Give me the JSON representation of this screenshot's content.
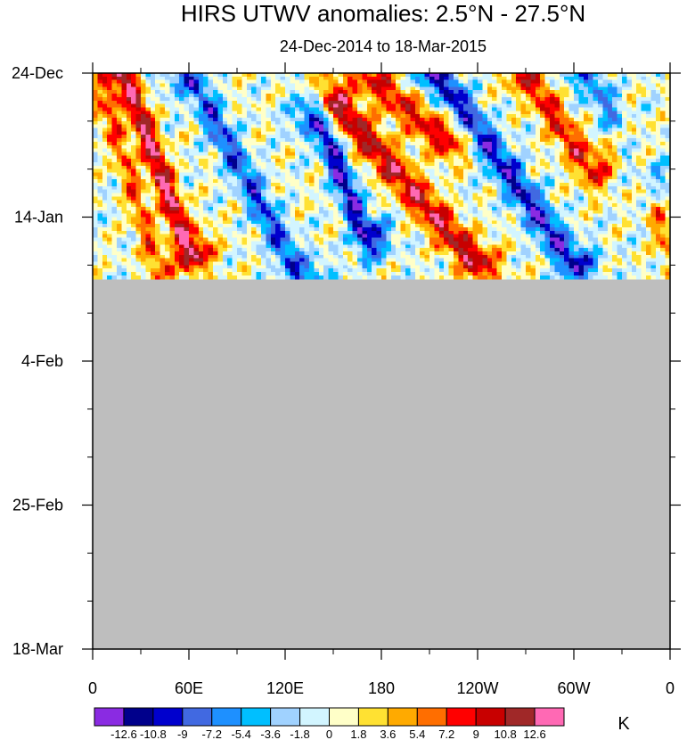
{
  "chart_data": {
    "type": "heatmap",
    "title": "HIRS UTWV anomalies: 2.5°N - 27.5°N",
    "subtitle": "24-Dec-2014 to 18-Mar-2015",
    "x_ticks": [
      "0",
      "60E",
      "120E",
      "180",
      "120W",
      "60W",
      "0"
    ],
    "x_tick_values": [
      0,
      60,
      120,
      180,
      240,
      300,
      360
    ],
    "x_range": [
      0,
      360
    ],
    "y_ticks": [
      "24-Dec",
      "14-Jan",
      "4-Feb",
      "25-Feb",
      "18-Mar"
    ],
    "y_tick_days": [
      0,
      21,
      42,
      63,
      84
    ],
    "y_range_days": [
      0,
      84
    ],
    "data_end_day": 30,
    "missing_color": "#bebebe",
    "colorbar": {
      "units": "K",
      "levels": [
        "-12.6",
        "-10.8",
        "-9",
        "-7.2",
        "-5.4",
        "-3.6",
        "-1.8",
        "0",
        "1.8",
        "3.6",
        "5.4",
        "7.2",
        "9",
        "10.8",
        "12.6"
      ],
      "colors": [
        "#8a2be2",
        "#00008b",
        "#0000cd",
        "#4169e1",
        "#1e90ff",
        "#00bfff",
        "#a0d2ff",
        "#d2f5ff",
        "#ffffc8",
        "#ffe132",
        "#ffaa00",
        "#ff6e00",
        "#ff0000",
        "#c80000",
        "#a02828",
        "#ff69b4"
      ]
    },
    "anomaly_features": [
      {
        "name": "warm band A",
        "start_lon": 20,
        "start_day": 0,
        "end_lon": 60,
        "end_day": 26,
        "peak": 13
      },
      {
        "name": "warm band B",
        "start_lon": 10,
        "start_day": 5,
        "end_lon": 40,
        "end_day": 28,
        "peak": 7
      },
      {
        "name": "cool band A",
        "start_lon": 60,
        "start_day": 0,
        "end_lon": 130,
        "end_day": 30,
        "peak": -9
      },
      {
        "name": "cool band B",
        "start_lon": 140,
        "start_day": 6,
        "end_lon": 170,
        "end_day": 24,
        "peak": -12
      },
      {
        "name": "warm band C",
        "start_lon": 150,
        "start_day": 4,
        "end_lon": 240,
        "end_day": 28,
        "peak": 11
      },
      {
        "name": "warm band D",
        "start_lon": 170,
        "start_day": 0,
        "end_lon": 220,
        "end_day": 10,
        "peak": 9
      },
      {
        "name": "cool band C",
        "start_lon": 215,
        "start_day": 0,
        "end_lon": 300,
        "end_day": 28,
        "peak": -11
      },
      {
        "name": "warm band E",
        "start_lon": 270,
        "start_day": 0,
        "end_lon": 310,
        "end_day": 14,
        "peak": 9
      },
      {
        "name": "cool band D",
        "start_lon": 310,
        "start_day": 0,
        "end_lon": 345,
        "end_day": 16,
        "peak": -7
      },
      {
        "name": "warm band F",
        "start_lon": 335,
        "start_day": 10,
        "end_lon": 360,
        "end_day": 26,
        "peak": 6
      }
    ]
  }
}
